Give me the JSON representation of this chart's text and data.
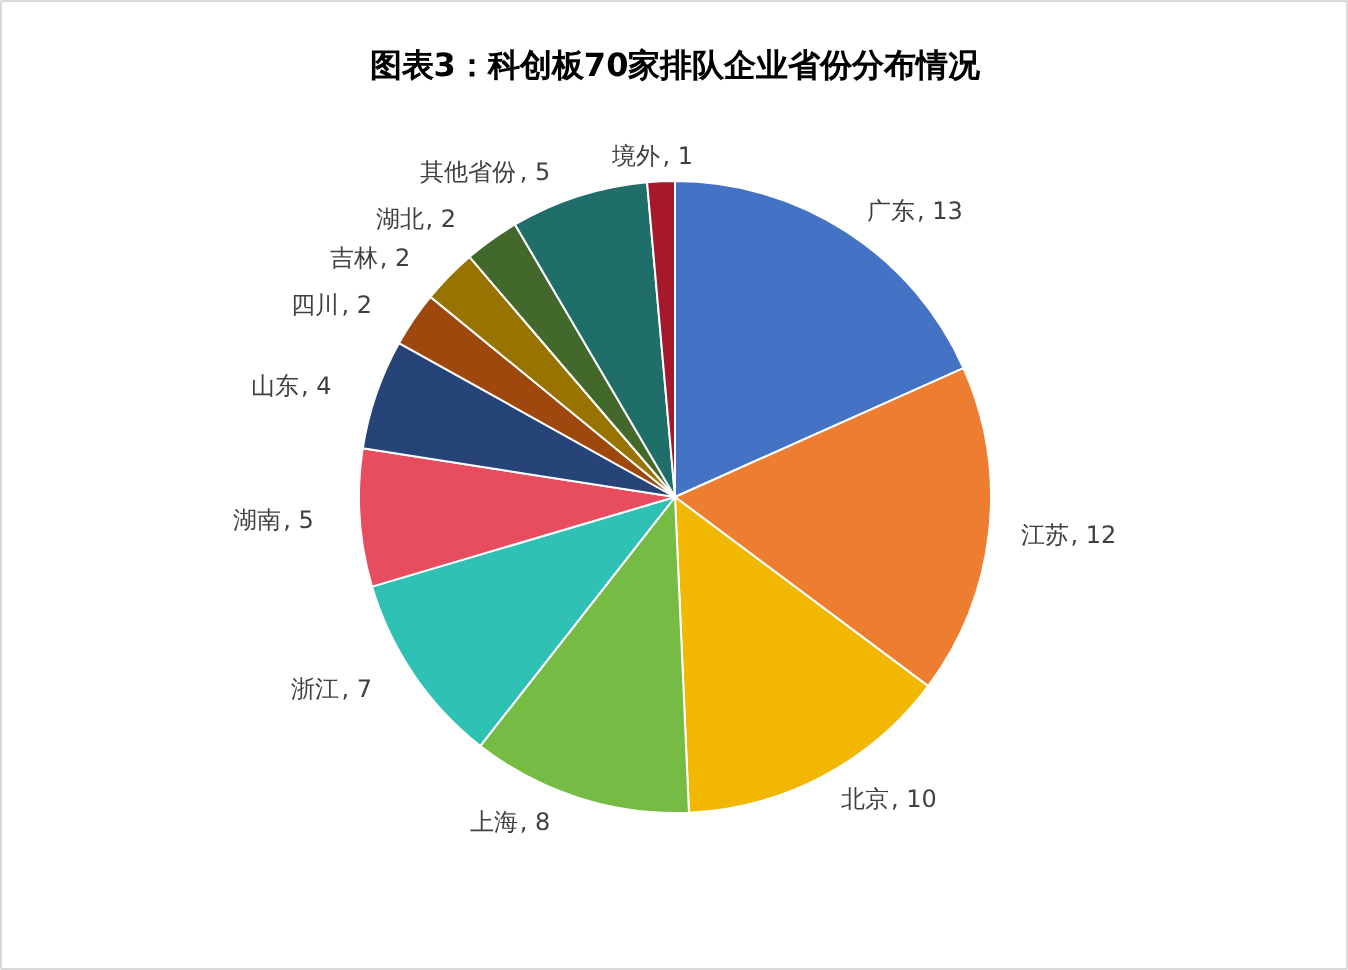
{
  "chart_data": {
    "type": "pie",
    "title": "图表3：科创板70家排队企业省份分布情况",
    "categories": [
      "广东",
      "江苏",
      "北京",
      "上海",
      "浙江",
      "湖南",
      "山东",
      "四川",
      "吉林",
      "湖北",
      "其他省份",
      "境外"
    ],
    "values": [
      13,
      12,
      10,
      8,
      7,
      5,
      4,
      2,
      2,
      2,
      5,
      1
    ],
    "colors": [
      "#4472c4",
      "#ed7d31",
      "#f2b700",
      "#75bb44",
      "#30c1b5",
      "#e84c5f",
      "#264478",
      "#9e480e",
      "#997300",
      "#43682b",
      "#1f6e6a",
      "#a5192a"
    ],
    "value_labels": [
      ", 13",
      ", 12",
      ", 10",
      ", 8",
      ", 7",
      ", 5",
      ", 4",
      ", 2",
      ", 2",
      ", 2",
      ", 5",
      ", 1"
    ]
  }
}
